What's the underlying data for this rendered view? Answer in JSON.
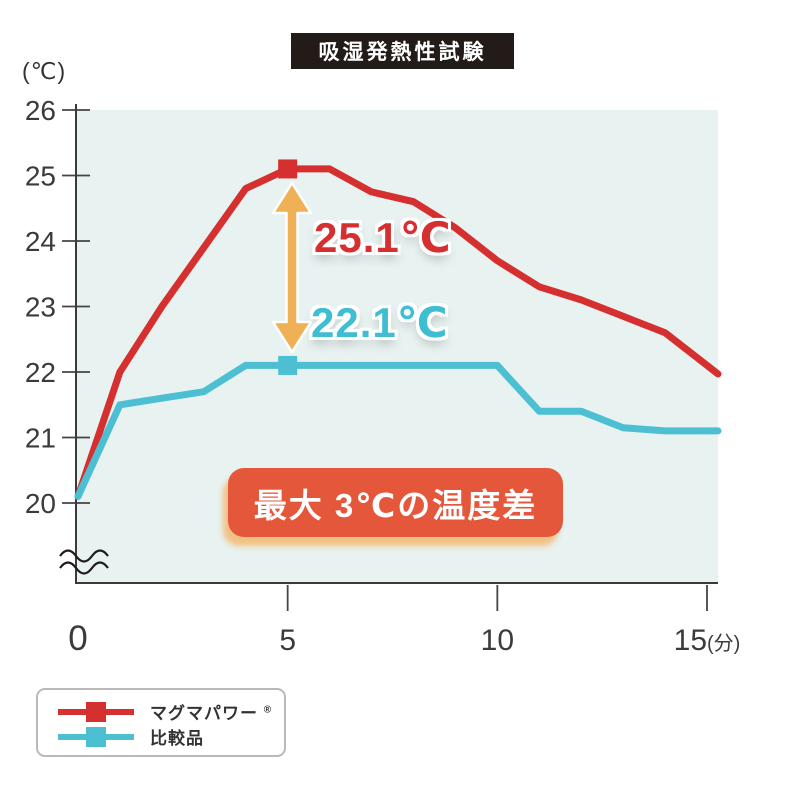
{
  "title_badge": "吸湿発熱性試験",
  "y_axis": {
    "unit": "(℃)",
    "ticks": [
      26,
      25,
      24,
      23,
      22,
      21,
      20
    ]
  },
  "x_axis": {
    "ticks": [
      0,
      5,
      10,
      15
    ],
    "unit_suffix": "(分)"
  },
  "annotations": {
    "badge_text": "最大 3℃の温度差"
  },
  "legend": {
    "items": [
      {
        "label": "マグマパワー",
        "sup": "®",
        "color": "#d62f2f"
      },
      {
        "label": "比較品",
        "sup": "",
        "color": "#4cc0d2"
      }
    ]
  },
  "colors": {
    "plot_background": "#e8f2f0",
    "axis": "#3a3a3a",
    "red_series": "#d62f2f",
    "cyan_series": "#4cc0d2",
    "arrow": "#f0b055",
    "badge_background": "#e5573b",
    "title_background": "#221b18"
  },
  "chart_data": {
    "type": "line",
    "title": "吸湿発熱性試験",
    "ylabel": "(℃)",
    "x_unit": "分",
    "ylim": [
      20,
      26
    ],
    "axis_break_below": 20,
    "grid": false,
    "legend_position": "bottom-left",
    "x": [
      0,
      1,
      2,
      3,
      4,
      5,
      6,
      7,
      8,
      9,
      10,
      11,
      12,
      13,
      14,
      15
    ],
    "series": [
      {
        "name": "マグマパワー®",
        "color": "#d62f2f",
        "values": [
          20.1,
          22.0,
          23.0,
          23.9,
          24.8,
          25.1,
          25.1,
          24.75,
          24.6,
          24.2,
          23.7,
          23.3,
          23.1,
          22.85,
          22.6,
          22.1
        ],
        "marker_index": 5,
        "marker_label": "25.1℃"
      },
      {
        "name": "比較品",
        "color": "#4cc0d2",
        "values": [
          20.1,
          21.5,
          21.6,
          21.7,
          22.1,
          22.1,
          22.1,
          22.1,
          22.1,
          22.1,
          22.1,
          21.4,
          21.4,
          21.15,
          21.1,
          21.1
        ],
        "marker_index": 5,
        "marker_label": "22.1℃"
      }
    ],
    "annotation": "最大 3℃の温度差"
  }
}
